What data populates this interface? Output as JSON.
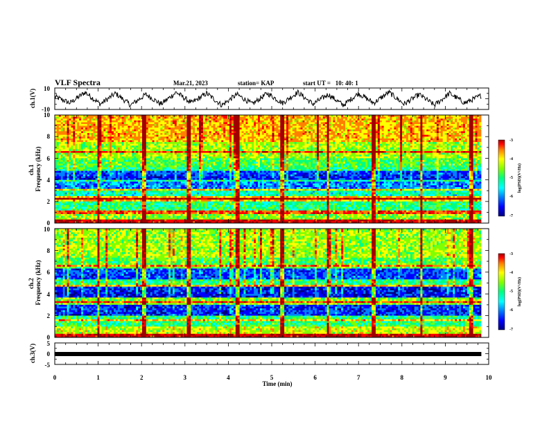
{
  "header": {
    "title": "VLF Spectra",
    "date": "Mar.21, 2023",
    "station": "station= KAP",
    "start_ut": "start UT =   10: 40: 1"
  },
  "colors": {
    "spectrum_scale": [
      "#000080",
      "#0000ff",
      "#0080ff",
      "#00ffff",
      "#00ff80",
      "#80ff00",
      "#ffff00",
      "#ff8000",
      "#ff0000",
      "#a00000"
    ],
    "waveform": "#000000",
    "frame": "#000000"
  },
  "chart_data": [
    {
      "type": "line",
      "name": "ch1-waveform",
      "ylabel": "ch.1(V)",
      "ylim": [
        -10,
        10
      ],
      "y_ticks": [
        "10",
        "-10"
      ],
      "xlim": [
        0,
        10
      ],
      "x_range_minutes": [
        0,
        9.83
      ],
      "description_of_shape": "oscillating waveform, roughly periodic with about 14 cycles",
      "x": [
        0,
        0.35,
        0.7,
        1.05,
        1.4,
        1.75,
        2.1,
        2.45,
        2.8,
        3.15,
        3.5,
        3.85,
        4.2,
        4.55,
        4.9,
        5.25,
        5.6,
        5.95,
        6.3,
        6.65,
        7.0,
        7.35,
        7.7,
        8.05,
        8.4,
        8.75,
        9.1,
        9.45,
        9.83
      ],
      "y": [
        2,
        -4,
        6,
        -5,
        5,
        -6,
        4,
        -5,
        6,
        -4,
        5,
        -6,
        4,
        -5,
        5,
        -4,
        6,
        -5,
        4,
        -6,
        5,
        -4,
        6,
        -5,
        4,
        -6,
        5,
        -4,
        3
      ]
    },
    {
      "type": "heatmap",
      "name": "ch1-spectrogram",
      "ylabel": "ch.1\nFrequency (kHz)",
      "ylim": [
        0,
        10
      ],
      "y_ticks": [
        "0",
        "2",
        "4",
        "6",
        "8",
        "10"
      ],
      "xlim": [
        0,
        10
      ],
      "x_range_minutes": [
        0,
        9.83
      ],
      "colorbar": {
        "label": "log(PSD)(V²/Hz)",
        "range": [
          -7,
          -3
        ],
        "ticks": [
          "-3",
          "-4",
          "-5",
          "-6",
          "-7"
        ]
      },
      "frequency_bands_kHz": [
        {
          "from": 0,
          "to": 0.3,
          "log_psd": -3.4
        },
        {
          "from": 0.3,
          "to": 1.2,
          "log_psd": -4.8
        },
        {
          "from": 1.2,
          "to": 2.0,
          "log_psd": -5.2
        },
        {
          "from": 2.0,
          "to": 2.5,
          "log_psd": -4.2
        },
        {
          "from": 2.5,
          "to": 3.2,
          "log_psd": -5.4
        },
        {
          "from": 3.2,
          "to": 3.8,
          "log_psd": -6.0
        },
        {
          "from": 3.8,
          "to": 4.4,
          "log_psd": -6.3
        },
        {
          "from": 4.4,
          "to": 5.2,
          "log_psd": -6.2
        },
        {
          "from": 5.2,
          "to": 6.0,
          "log_psd": -5.0
        },
        {
          "from": 6.0,
          "to": 7.5,
          "log_psd": -4.7
        },
        {
          "from": 7.5,
          "to": 10,
          "log_psd": -4.2
        }
      ],
      "line_features_kHz": [
        1.0,
        2.3,
        3.1,
        3.9,
        5.0,
        6.6
      ],
      "sferic_times_min": [
        1.0,
        2.05,
        3.1,
        4.2,
        5.25,
        6.3,
        7.35,
        8.45,
        9.6
      ]
    },
    {
      "type": "heatmap",
      "name": "ch2-spectrogram",
      "ylabel": "ch.2\nFrequency (kHz)",
      "ylim": [
        0,
        10
      ],
      "y_ticks": [
        "0",
        "2",
        "4",
        "6",
        "8",
        "10"
      ],
      "xlim": [
        0,
        10
      ],
      "x_range_minutes": [
        0,
        9.83
      ],
      "colorbar": {
        "label": "log(PSD)(V²/Hz)",
        "range": [
          -7,
          -3
        ],
        "ticks": [
          "-3",
          "-4",
          "-5",
          "-6",
          "-7"
        ]
      },
      "frequency_bands_kHz": [
        {
          "from": 0,
          "to": 0.3,
          "log_psd": -3.4
        },
        {
          "from": 0.3,
          "to": 1.0,
          "log_psd": -4.6
        },
        {
          "from": 1.0,
          "to": 2.0,
          "log_psd": -5.2
        },
        {
          "from": 2.0,
          "to": 3.0,
          "log_psd": -6.3
        },
        {
          "from": 3.0,
          "to": 3.6,
          "log_psd": -4.8
        },
        {
          "from": 3.6,
          "to": 4.6,
          "log_psd": -6.4
        },
        {
          "from": 4.6,
          "to": 5.4,
          "log_psd": -5.2
        },
        {
          "from": 5.4,
          "to": 6.4,
          "log_psd": -6.2
        },
        {
          "from": 6.4,
          "to": 7.4,
          "log_psd": -5.0
        },
        {
          "from": 7.4,
          "to": 10,
          "log_psd": -4.7
        }
      ],
      "line_features_kHz": [
        1.6,
        3.3,
        4.8,
        6.6
      ],
      "sferic_times_min": [
        1.0,
        2.05,
        3.1,
        4.2,
        5.25,
        6.3,
        7.35,
        8.45,
        9.6
      ]
    },
    {
      "type": "line",
      "name": "ch3-signal",
      "ylabel": "ch.3(V)",
      "ylim": [
        -5,
        5
      ],
      "y_ticks": [
        "5",
        "0",
        "-5"
      ],
      "xlim": [
        0,
        10
      ],
      "x_range_minutes": [
        0,
        9.83
      ],
      "constant_value_V": 0,
      "description_of_shape": "flat thick black band near 0 V"
    }
  ],
  "x_axis": {
    "label": "Time (min)",
    "ticks": [
      "0",
      "1",
      "2",
      "3",
      "4",
      "5",
      "6",
      "7",
      "8",
      "9",
      "10"
    ]
  }
}
